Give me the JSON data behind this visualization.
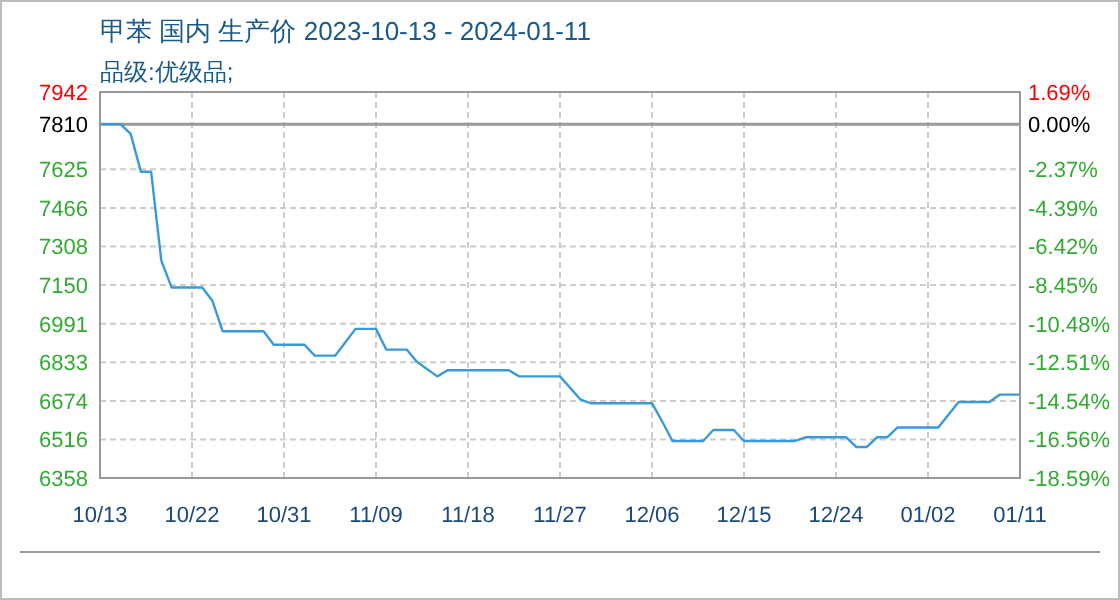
{
  "chart_data": {
    "type": "line",
    "title": "甲苯 国内 生产价 2023-10-13 - 2024-01-11",
    "subtitle": "品级:优级品;",
    "x": [
      "2023-10-13",
      "2023-10-15",
      "2023-10-16",
      "2023-10-17",
      "2023-10-18",
      "2023-10-19",
      "2023-10-20",
      "2023-10-23",
      "2023-10-24",
      "2023-10-25",
      "2023-10-29",
      "2023-10-30",
      "2023-11-02",
      "2023-11-03",
      "2023-11-05",
      "2023-11-07",
      "2023-11-09",
      "2023-11-10",
      "2023-11-12",
      "2023-11-13",
      "2023-11-15",
      "2023-11-16",
      "2023-11-22",
      "2023-11-23",
      "2023-11-27",
      "2023-11-29",
      "2023-11-30",
      "2023-12-06",
      "2023-12-07",
      "2023-12-08",
      "2023-12-11",
      "2023-12-12",
      "2023-12-14",
      "2023-12-15",
      "2023-12-20",
      "2023-12-21",
      "2023-12-25",
      "2023-12-26",
      "2023-12-27",
      "2023-12-28",
      "2023-12-29",
      "2023-12-30",
      "2024-01-03",
      "2024-01-05",
      "2024-01-08",
      "2024-01-09",
      "2024-01-11"
    ],
    "series": [
      {
        "color": "#3a9ad9",
        "values": [
          7810,
          7810,
          7770,
          7615,
          7615,
          7250,
          7140,
          7140,
          7085,
          6960,
          6960,
          6905,
          6905,
          6860,
          6860,
          6970,
          6970,
          6885,
          6885,
          6835,
          6775,
          6800,
          6800,
          6775,
          6775,
          6680,
          6665,
          6665,
          6590,
          6510,
          6510,
          6555,
          6555,
          6510,
          6510,
          6525,
          6525,
          6485,
          6485,
          6525,
          6525,
          6565,
          6565,
          6670,
          6670,
          6700,
          6700
        ]
      }
    ],
    "xlim": [
      "2023-10-13",
      "2024-01-11"
    ],
    "xticks": [
      {
        "value": "2023-10-13",
        "label": "10/13"
      },
      {
        "value": "2023-10-22",
        "label": "10/22"
      },
      {
        "value": "2023-10-31",
        "label": "10/31"
      },
      {
        "value": "2023-11-09",
        "label": "11/09"
      },
      {
        "value": "2023-11-18",
        "label": "11/18"
      },
      {
        "value": "2023-11-27",
        "label": "11/27"
      },
      {
        "value": "2023-12-06",
        "label": "12/06"
      },
      {
        "value": "2023-12-15",
        "label": "12/15"
      },
      {
        "value": "2023-12-24",
        "label": "12/24"
      },
      {
        "value": "2024-01-02",
        "label": "01/02"
      },
      {
        "value": "2024-01-11",
        "label": "01/11"
      }
    ],
    "ylim": [
      6358,
      7942
    ],
    "yticks": [
      6358,
      6516,
      6674,
      6833,
      6991,
      7150,
      7308,
      7466,
      7625,
      7810,
      7942
    ],
    "y2lim": [
      -18.59,
      1.69
    ],
    "y2ticks": [
      {
        "value": -18.59,
        "label": "-18.59%"
      },
      {
        "value": -16.56,
        "label": "-16.56%"
      },
      {
        "value": -14.54,
        "label": "-14.54%"
      },
      {
        "value": -12.51,
        "label": "-12.51%"
      },
      {
        "value": -10.48,
        "label": "-10.48%"
      },
      {
        "value": -8.45,
        "label": "-8.45%"
      },
      {
        "value": -6.42,
        "label": "-6.42%"
      },
      {
        "value": -4.39,
        "label": "-4.39%"
      },
      {
        "value": -2.37,
        "label": "-2.37%"
      },
      {
        "value": 0,
        "label": "0.00%"
      },
      {
        "value": 1.69,
        "label": "1.69%"
      }
    ],
    "ref_lines": [
      {
        "axis": "y",
        "value": 7810,
        "color": "#999999"
      }
    ],
    "grid": true,
    "marker": "none",
    "line_style": "solid"
  }
}
